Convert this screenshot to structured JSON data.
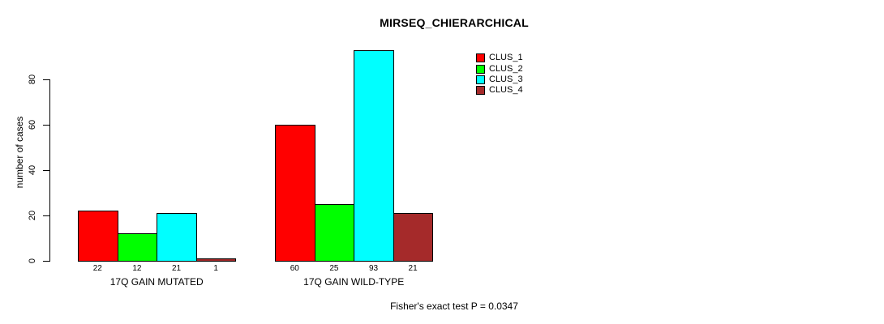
{
  "chart_data": {
    "type": "bar",
    "title": "MIRSEQ_CHIERARCHICAL",
    "ylabel": "number of cases",
    "xlabel": "",
    "yticks": [
      0,
      20,
      40,
      60,
      80
    ],
    "ylim": [
      0,
      93
    ],
    "grid": false,
    "legend_position": "top-right",
    "bar_labels_shown": true,
    "categories": [
      "17Q GAIN MUTATED",
      "17Q GAIN WILD-TYPE"
    ],
    "series": [
      {
        "name": "CLUS_1",
        "color": "#ff0000",
        "values": [
          22,
          60
        ]
      },
      {
        "name": "CLUS_2",
        "color": "#00ff00",
        "values": [
          12,
          25
        ]
      },
      {
        "name": "CLUS_3",
        "color": "#00ffff",
        "values": [
          21,
          93
        ]
      },
      {
        "name": "CLUS_4",
        "color": "#a52a2a",
        "values": [
          1,
          21
        ]
      }
    ],
    "annotation": "Fisher's exact test P = 0.0347"
  },
  "colors": {
    "background": "#ffffff",
    "axis": "#000000",
    "text": "#000000"
  }
}
